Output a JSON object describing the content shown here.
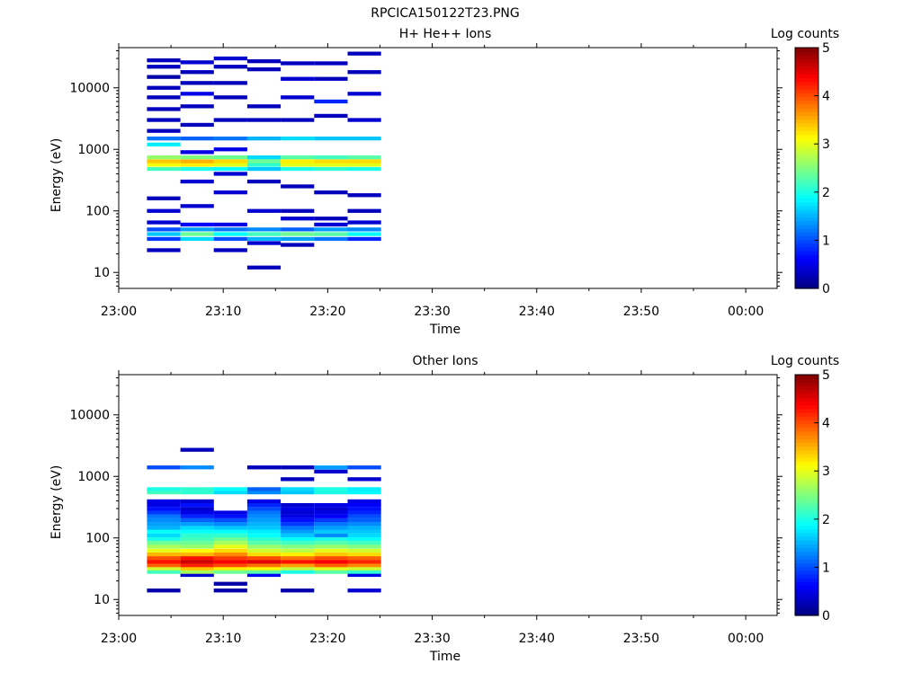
{
  "figure": {
    "title": "RPCICA150122T23.PNG"
  },
  "chart_data": [
    {
      "type": "heatmap",
      "title": "H+ He++ Ions",
      "xlabel": "Time",
      "ylabel": "Energy (eV)",
      "x_ticks": [
        "23:00",
        "23:10",
        "23:20",
        "23:30",
        "23:40",
        "23:50",
        "00:00"
      ],
      "y_ticks": [
        "10",
        "100",
        "1000",
        "10000"
      ],
      "y_scale": "log",
      "ylim": [
        5.5,
        45000
      ],
      "colorbar": {
        "label": "Log counts",
        "ticks": [
          "0",
          "1",
          "2",
          "3",
          "4",
          "5"
        ],
        "range": [
          0,
          5
        ],
        "colormap": "jet"
      },
      "time_bins_minutes": [
        2.7,
        5.9,
        9.1,
        12.3,
        15.5,
        18.7,
        21.9,
        25.1
      ],
      "cells": [
        [
          0,
          23,
          0.3
        ],
        [
          0,
          35,
          0.9
        ],
        [
          0,
          42,
          1.6
        ],
        [
          0,
          50,
          1.0
        ],
        [
          0,
          65,
          0.4
        ],
        [
          0,
          100,
          0.4
        ],
        [
          0,
          160,
          0.3
        ],
        [
          0,
          480,
          2.2
        ],
        [
          0,
          560,
          3.1
        ],
        [
          0,
          640,
          3.4
        ],
        [
          0,
          740,
          2.6
        ],
        [
          0,
          1200,
          1.8
        ],
        [
          0,
          1500,
          1.2
        ],
        [
          0,
          2000,
          0.3
        ],
        [
          0,
          3000,
          0.3
        ],
        [
          0,
          4500,
          0.3
        ],
        [
          0,
          7000,
          0.3
        ],
        [
          0,
          10000,
          0.3
        ],
        [
          0,
          15000,
          0.2
        ],
        [
          0,
          22000,
          0.3
        ],
        [
          0,
          28000,
          0.3
        ],
        [
          1,
          35,
          1.7
        ],
        [
          1,
          42,
          2.4
        ],
        [
          1,
          50,
          1.4
        ],
        [
          1,
          60,
          0.6
        ],
        [
          1,
          120,
          0.4
        ],
        [
          1,
          300,
          0.4
        ],
        [
          1,
          480,
          2.0
        ],
        [
          1,
          560,
          3.2
        ],
        [
          1,
          640,
          3.5
        ],
        [
          1,
          740,
          2.5
        ],
        [
          1,
          900,
          0.5
        ],
        [
          1,
          1500,
          1.1
        ],
        [
          1,
          2500,
          0.3
        ],
        [
          1,
          5000,
          0.3
        ],
        [
          1,
          8000,
          0.5
        ],
        [
          1,
          12000,
          0.3
        ],
        [
          1,
          18000,
          0.3
        ],
        [
          1,
          26000,
          0.4
        ],
        [
          2,
          23,
          0.3
        ],
        [
          2,
          35,
          1.0
        ],
        [
          2,
          42,
          1.9
        ],
        [
          2,
          50,
          1.2
        ],
        [
          2,
          60,
          0.5
        ],
        [
          2,
          200,
          0.4
        ],
        [
          2,
          400,
          0.4
        ],
        [
          2,
          480,
          1.9
        ],
        [
          2,
          560,
          3.0
        ],
        [
          2,
          640,
          3.3
        ],
        [
          2,
          740,
          2.4
        ],
        [
          2,
          1000,
          0.5
        ],
        [
          2,
          1500,
          1.2
        ],
        [
          2,
          3000,
          0.3
        ],
        [
          2,
          7000,
          0.3
        ],
        [
          2,
          12000,
          0.3
        ],
        [
          2,
          22000,
          0.3
        ],
        [
          2,
          30000,
          0.4
        ],
        [
          3,
          12,
          0.3
        ],
        [
          3,
          30,
          0.4
        ],
        [
          3,
          35,
          1.5
        ],
        [
          3,
          42,
          2.2
        ],
        [
          3,
          50,
          1.3
        ],
        [
          3,
          100,
          0.4
        ],
        [
          3,
          300,
          0.3
        ],
        [
          3,
          480,
          1.6
        ],
        [
          3,
          560,
          2.1
        ],
        [
          3,
          640,
          2.4
        ],
        [
          3,
          740,
          1.7
        ],
        [
          3,
          1500,
          1.5
        ],
        [
          3,
          3000,
          0.3
        ],
        [
          3,
          5000,
          0.3
        ],
        [
          3,
          20000,
          0.3
        ],
        [
          3,
          27000,
          0.3
        ],
        [
          4,
          28,
          0.3
        ],
        [
          4,
          35,
          1.4
        ],
        [
          4,
          42,
          2.4
        ],
        [
          4,
          50,
          1.1
        ],
        [
          4,
          75,
          0.4
        ],
        [
          4,
          100,
          0.3
        ],
        [
          4,
          250,
          0.3
        ],
        [
          4,
          480,
          2.0
        ],
        [
          4,
          560,
          3.0
        ],
        [
          4,
          640,
          3.2
        ],
        [
          4,
          740,
          2.3
        ],
        [
          4,
          1500,
          1.7
        ],
        [
          4,
          3000,
          0.3
        ],
        [
          4,
          7000,
          0.4
        ],
        [
          4,
          14000,
          0.4
        ],
        [
          4,
          25000,
          0.3
        ],
        [
          5,
          35,
          1.2
        ],
        [
          5,
          42,
          2.3
        ],
        [
          5,
          50,
          1.4
        ],
        [
          5,
          60,
          0.4
        ],
        [
          5,
          75,
          0.3
        ],
        [
          5,
          200,
          0.3
        ],
        [
          5,
          480,
          2.1
        ],
        [
          5,
          560,
          3.0
        ],
        [
          5,
          640,
          3.3
        ],
        [
          5,
          740,
          2.2
        ],
        [
          5,
          1500,
          1.6
        ],
        [
          5,
          3500,
          0.3
        ],
        [
          5,
          6000,
          0.8
        ],
        [
          5,
          14000,
          0.3
        ],
        [
          5,
          25000,
          0.3
        ],
        [
          6,
          35,
          0.8
        ],
        [
          6,
          42,
          1.9
        ],
        [
          6,
          50,
          1.3
        ],
        [
          6,
          65,
          0.4
        ],
        [
          6,
          100,
          0.3
        ],
        [
          6,
          180,
          0.3
        ],
        [
          6,
          480,
          2.0
        ],
        [
          6,
          560,
          3.0
        ],
        [
          6,
          640,
          3.3
        ],
        [
          6,
          740,
          2.3
        ],
        [
          6,
          1500,
          1.6
        ],
        [
          6,
          3000,
          0.4
        ],
        [
          6,
          8000,
          0.4
        ],
        [
          6,
          18000,
          0.3
        ],
        [
          6,
          36000,
          0.3
        ]
      ]
    },
    {
      "type": "heatmap",
      "title": "Other Ions",
      "xlabel": "Time",
      "ylabel": "Energy (eV)",
      "x_ticks": [
        "23:00",
        "23:10",
        "23:20",
        "23:30",
        "23:40",
        "23:50",
        "00:00"
      ],
      "y_ticks": [
        "10",
        "100",
        "1000",
        "10000"
      ],
      "y_scale": "log",
      "ylim": [
        5.5,
        45000
      ],
      "colorbar": {
        "label": "Log counts",
        "ticks": [
          "0",
          "1",
          "2",
          "3",
          "4",
          "5"
        ],
        "range": [
          0,
          5
        ],
        "colormap": "jet"
      },
      "time_bins_minutes": [
        2.7,
        5.9,
        9.1,
        12.3,
        15.5,
        18.7,
        21.9,
        25.1
      ],
      "cells": [
        [
          0,
          14,
          0.2
        ],
        [
          0,
          28,
          2.2
        ],
        [
          0,
          32,
          2.9
        ],
        [
          0,
          36,
          3.9
        ],
        [
          0,
          41,
          4.3
        ],
        [
          0,
          47,
          4.0
        ],
        [
          0,
          54,
          3.5
        ],
        [
          0,
          62,
          3.0
        ],
        [
          0,
          72,
          2.7
        ],
        [
          0,
          83,
          2.4
        ],
        [
          0,
          96,
          2.0
        ],
        [
          0,
          110,
          1.7
        ],
        [
          0,
          127,
          1.9
        ],
        [
          0,
          146,
          1.5
        ],
        [
          0,
          168,
          1.4
        ],
        [
          0,
          194,
          1.3
        ],
        [
          0,
          224,
          1.2
        ],
        [
          0,
          258,
          0.9
        ],
        [
          0,
          297,
          0.7
        ],
        [
          0,
          342,
          0.5
        ],
        [
          0,
          394,
          0.5
        ],
        [
          0,
          550,
          2.2
        ],
        [
          0,
          620,
          2.0
        ],
        [
          0,
          1400,
          1.0
        ],
        [
          1,
          25,
          0.4
        ],
        [
          1,
          28,
          2.7
        ],
        [
          1,
          32,
          3.4
        ],
        [
          1,
          36,
          4.2
        ],
        [
          1,
          41,
          4.6
        ],
        [
          1,
          47,
          4.3
        ],
        [
          1,
          54,
          3.5
        ],
        [
          1,
          62,
          3.1
        ],
        [
          1,
          72,
          2.6
        ],
        [
          1,
          83,
          2.4
        ],
        [
          1,
          96,
          2.2
        ],
        [
          1,
          110,
          2.1
        ],
        [
          1,
          127,
          1.9
        ],
        [
          1,
          146,
          1.7
        ],
        [
          1,
          168,
          1.4
        ],
        [
          1,
          194,
          1.1
        ],
        [
          1,
          224,
          0.8
        ],
        [
          1,
          258,
          0.5
        ],
        [
          1,
          297,
          0.4
        ],
        [
          1,
          342,
          0.7
        ],
        [
          1,
          394,
          0.4
        ],
        [
          1,
          550,
          2.1
        ],
        [
          1,
          620,
          2.1
        ],
        [
          1,
          1400,
          1.3
        ],
        [
          1,
          2700,
          0.3
        ],
        [
          2,
          14,
          0.2
        ],
        [
          2,
          18,
          0.2
        ],
        [
          2,
          28,
          2.4
        ],
        [
          2,
          32,
          3.2
        ],
        [
          2,
          36,
          4.0
        ],
        [
          2,
          41,
          4.4
        ],
        [
          2,
          47,
          4.1
        ],
        [
          2,
          54,
          3.7
        ],
        [
          2,
          62,
          3.3
        ],
        [
          2,
          72,
          3.0
        ],
        [
          2,
          83,
          2.7
        ],
        [
          2,
          96,
          2.4
        ],
        [
          2,
          110,
          2.1
        ],
        [
          2,
          127,
          1.9
        ],
        [
          2,
          146,
          1.6
        ],
        [
          2,
          168,
          1.3
        ],
        [
          2,
          194,
          1.0
        ],
        [
          2,
          224,
          0.7
        ],
        [
          2,
          258,
          0.5
        ],
        [
          2,
          550,
          1.7
        ],
        [
          2,
          620,
          1.9
        ],
        [
          3,
          25,
          0.6
        ],
        [
          3,
          28,
          2.3
        ],
        [
          3,
          32,
          3.1
        ],
        [
          3,
          36,
          3.8
        ],
        [
          3,
          41,
          4.5
        ],
        [
          3,
          47,
          4.0
        ],
        [
          3,
          54,
          3.3
        ],
        [
          3,
          62,
          2.9
        ],
        [
          3,
          72,
          2.6
        ],
        [
          3,
          83,
          2.3
        ],
        [
          3,
          96,
          2.1
        ],
        [
          3,
          110,
          1.9
        ],
        [
          3,
          127,
          1.8
        ],
        [
          3,
          146,
          1.6
        ],
        [
          3,
          168,
          1.5
        ],
        [
          3,
          194,
          1.4
        ],
        [
          3,
          224,
          1.3
        ],
        [
          3,
          258,
          1.2
        ],
        [
          3,
          297,
          1.0
        ],
        [
          3,
          342,
          0.8
        ],
        [
          3,
          394,
          0.5
        ],
        [
          3,
          550,
          1.3
        ],
        [
          3,
          620,
          1.1
        ],
        [
          3,
          1400,
          0.3
        ],
        [
          4,
          14,
          0.2
        ],
        [
          4,
          28,
          2.0
        ],
        [
          4,
          32,
          2.8
        ],
        [
          4,
          36,
          3.6
        ],
        [
          4,
          41,
          4.3
        ],
        [
          4,
          47,
          3.8
        ],
        [
          4,
          54,
          3.2
        ],
        [
          4,
          62,
          2.8
        ],
        [
          4,
          72,
          2.5
        ],
        [
          4,
          83,
          2.2
        ],
        [
          4,
          96,
          1.9
        ],
        [
          4,
          110,
          1.6
        ],
        [
          4,
          127,
          1.4
        ],
        [
          4,
          146,
          1.2
        ],
        [
          4,
          168,
          0.9
        ],
        [
          4,
          194,
          0.7
        ],
        [
          4,
          224,
          0.5
        ],
        [
          4,
          258,
          0.4
        ],
        [
          4,
          297,
          0.5
        ],
        [
          4,
          342,
          0.4
        ],
        [
          4,
          550,
          1.6
        ],
        [
          4,
          620,
          1.7
        ],
        [
          4,
          900,
          0.3
        ],
        [
          4,
          1400,
          0.3
        ],
        [
          5,
          28,
          2.3
        ],
        [
          5,
          32,
          3.0
        ],
        [
          5,
          36,
          3.9
        ],
        [
          5,
          41,
          4.4
        ],
        [
          5,
          47,
          4.0
        ],
        [
          5,
          54,
          3.4
        ],
        [
          5,
          62,
          3.0
        ],
        [
          5,
          72,
          2.6
        ],
        [
          5,
          83,
          2.3
        ],
        [
          5,
          96,
          2.0
        ],
        [
          5,
          110,
          1.3
        ],
        [
          5,
          127,
          1.6
        ],
        [
          5,
          146,
          1.4
        ],
        [
          5,
          168,
          1.2
        ],
        [
          5,
          194,
          0.9
        ],
        [
          5,
          224,
          0.6
        ],
        [
          5,
          258,
          0.5
        ],
        [
          5,
          297,
          0.4
        ],
        [
          5,
          342,
          0.5
        ],
        [
          5,
          550,
          2.0
        ],
        [
          5,
          620,
          2.0
        ],
        [
          5,
          1200,
          0.4
        ],
        [
          5,
          1400,
          1.4
        ],
        [
          6,
          14,
          0.4
        ],
        [
          6,
          25,
          0.5
        ],
        [
          6,
          28,
          2.1
        ],
        [
          6,
          32,
          2.9
        ],
        [
          6,
          36,
          3.7
        ],
        [
          6,
          41,
          4.2
        ],
        [
          6,
          47,
          3.9
        ],
        [
          6,
          54,
          3.3
        ],
        [
          6,
          62,
          2.9
        ],
        [
          6,
          72,
          2.5
        ],
        [
          6,
          83,
          2.2
        ],
        [
          6,
          96,
          1.9
        ],
        [
          6,
          110,
          1.7
        ],
        [
          6,
          127,
          1.6
        ],
        [
          6,
          146,
          1.5
        ],
        [
          6,
          168,
          1.3
        ],
        [
          6,
          194,
          1.1
        ],
        [
          6,
          224,
          1.0
        ],
        [
          6,
          258,
          0.8
        ],
        [
          6,
          297,
          0.7
        ],
        [
          6,
          342,
          0.6
        ],
        [
          6,
          394,
          0.5
        ],
        [
          6,
          550,
          1.9
        ],
        [
          6,
          620,
          1.8
        ],
        [
          6,
          900,
          0.4
        ],
        [
          6,
          1400,
          1.0
        ]
      ]
    }
  ]
}
